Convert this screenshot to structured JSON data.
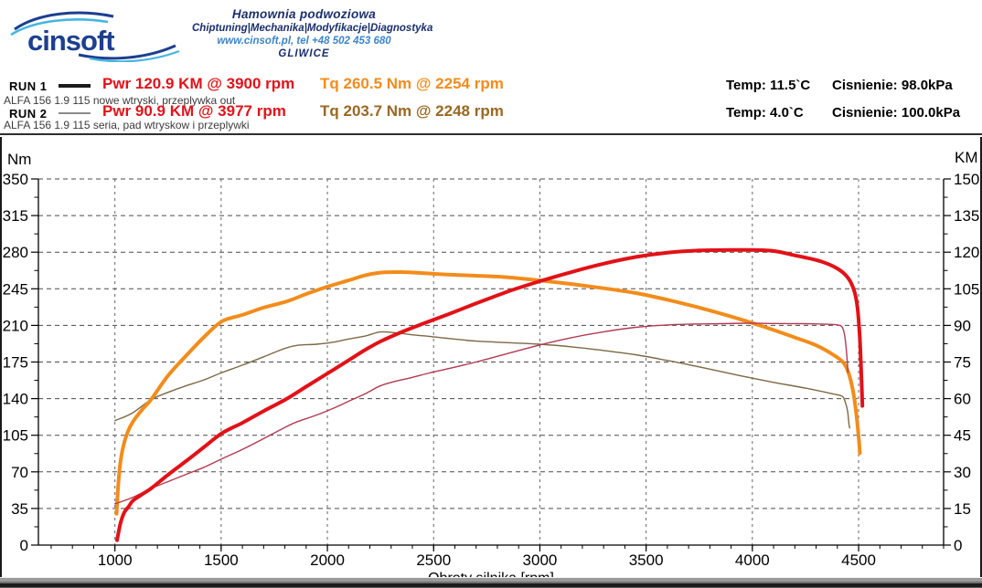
{
  "header": {
    "logo_text": "cinsoft",
    "line1": "Hamownia podwoziowa",
    "line2": "Chiptuning|Mechanika|Modyfikacje|Diagnostyka",
    "line3": "www.cinsoft.pl, tel +48 502 453 680",
    "line4": "GLIWICE"
  },
  "runs": [
    {
      "label": "RUN 1",
      "pwr": "Pwr 120.9 KM @ 3900 rpm",
      "tq": "Tq 260.5 Nm @ 2254 rpm",
      "temp": "Temp: 11.5`C",
      "pressure": "Cisnienie: 98.0kPa",
      "desc": "ALFA 156 1.9 115 nowe wtryski, przeplywka out"
    },
    {
      "label": "RUN 2",
      "pwr": "Pwr 90.9 KM @ 3977 rpm",
      "tq": "Tq 203.7 Nm @ 2248 rpm",
      "temp": "Temp: 4.0`C",
      "pressure": "Cisnienie: 100.0kPa",
      "desc": "ALFA 156 1.9 115 seria, pad wtryskow i przeplywki"
    }
  ],
  "colors": {
    "run1_power": "#e11218",
    "run1_torque": "#f28c1c",
    "run2_power": "#b23a50",
    "run2_torque": "#7d6845",
    "navy": "#1c3f8f",
    "light_blue": "#45b5e0"
  },
  "chart_data": {
    "type": "line",
    "x_axis": {
      "title": "Obroty silnika [rpm]",
      "min": 640,
      "max": 4900,
      "major_ticks": [
        1000,
        1500,
        2000,
        2500,
        3000,
        3500,
        4000,
        4500
      ],
      "minor_step": 100
    },
    "y_left": {
      "title": "Nm",
      "min": 0,
      "max": 350,
      "major_ticks": [
        0,
        35,
        70,
        105,
        140,
        175,
        210,
        245,
        280,
        315,
        350
      ],
      "minor_step": 17.5
    },
    "y_right": {
      "title": "KM",
      "min": 0,
      "max": 150,
      "major_ticks": [
        0,
        15,
        30,
        45,
        60,
        75,
        90,
        105,
        120,
        135,
        150
      ],
      "minor_step": 7.5
    },
    "series": [
      {
        "name": "RUN 2 torque",
        "axis": "left",
        "color": "#7d6845",
        "width": 1.4,
        "points": [
          [
            1000,
            119
          ],
          [
            1080,
            126
          ],
          [
            1170,
            139
          ],
          [
            1250,
            146
          ],
          [
            1330,
            152
          ],
          [
            1420,
            158
          ],
          [
            1505,
            165
          ],
          [
            1600,
            172
          ],
          [
            1700,
            180
          ],
          [
            1800,
            188
          ],
          [
            1860,
            191
          ],
          [
            1950,
            192
          ],
          [
            2030,
            194
          ],
          [
            2100,
            197
          ],
          [
            2180,
            200
          ],
          [
            2248,
            203.7
          ],
          [
            2320,
            203
          ],
          [
            2400,
            201
          ],
          [
            2480,
            199.5
          ],
          [
            2570,
            197.5
          ],
          [
            2700,
            195
          ],
          [
            2850,
            193.5
          ],
          [
            3000,
            192
          ],
          [
            3150,
            189.5
          ],
          [
            3300,
            186
          ],
          [
            3450,
            182
          ],
          [
            3600,
            176.5
          ],
          [
            3700,
            172.5
          ],
          [
            3850,
            166
          ],
          [
            3977,
            160.5
          ],
          [
            4100,
            155.5
          ],
          [
            4250,
            150
          ],
          [
            4370,
            145
          ],
          [
            4420,
            142.5
          ],
          [
            4435,
            138
          ],
          [
            4448,
            128
          ],
          [
            4455,
            115
          ],
          [
            4458,
            112
          ]
        ]
      },
      {
        "name": "RUN 1 torque",
        "axis": "left",
        "color": "#f28c1c",
        "width": 4,
        "points": [
          [
            1008,
            30
          ],
          [
            1015,
            55
          ],
          [
            1025,
            78
          ],
          [
            1040,
            95
          ],
          [
            1060,
            108
          ],
          [
            1085,
            118
          ],
          [
            1130,
            130
          ],
          [
            1170,
            139
          ],
          [
            1250,
            162
          ],
          [
            1335,
            181
          ],
          [
            1420,
            199
          ],
          [
            1505,
            214
          ],
          [
            1600,
            220
          ],
          [
            1700,
            227
          ],
          [
            1810,
            233
          ],
          [
            1900,
            240
          ],
          [
            2000,
            247
          ],
          [
            2100,
            253
          ],
          [
            2180,
            258
          ],
          [
            2254,
            260.5
          ],
          [
            2350,
            261
          ],
          [
            2450,
            260
          ],
          [
            2570,
            258.5
          ],
          [
            2700,
            257.5
          ],
          [
            2850,
            256
          ],
          [
            3000,
            253
          ],
          [
            3150,
            249.5
          ],
          [
            3300,
            245.5
          ],
          [
            3450,
            241
          ],
          [
            3600,
            234.5
          ],
          [
            3750,
            227
          ],
          [
            3900,
            218.5
          ],
          [
            4050,
            209
          ],
          [
            4200,
            198.5
          ],
          [
            4300,
            191
          ],
          [
            4380,
            182
          ],
          [
            4430,
            174
          ],
          [
            4455,
            163
          ],
          [
            4475,
            146
          ],
          [
            4490,
            124
          ],
          [
            4500,
            104
          ],
          [
            4506,
            88
          ]
        ]
      },
      {
        "name": "RUN 2 power",
        "axis": "right",
        "color": "#b23a50",
        "width": 1.4,
        "points": [
          [
            1000,
            16.9
          ],
          [
            1080,
            19.4
          ],
          [
            1170,
            23.2
          ],
          [
            1250,
            26
          ],
          [
            1330,
            28.8
          ],
          [
            1420,
            31.9
          ],
          [
            1505,
            35.4
          ],
          [
            1600,
            39.2
          ],
          [
            1700,
            43.6
          ],
          [
            1800,
            48.2
          ],
          [
            1860,
            50.6
          ],
          [
            1950,
            53.3
          ],
          [
            2030,
            56.1
          ],
          [
            2100,
            58.9
          ],
          [
            2180,
            62.1
          ],
          [
            2248,
            65.2
          ],
          [
            2320,
            67.1
          ],
          [
            2400,
            68.7
          ],
          [
            2480,
            70.5
          ],
          [
            2570,
            72.3
          ],
          [
            2700,
            75
          ],
          [
            2850,
            78.5
          ],
          [
            3000,
            82
          ],
          [
            3150,
            85
          ],
          [
            3300,
            87.4
          ],
          [
            3450,
            89.2
          ],
          [
            3600,
            90.2
          ],
          [
            3700,
            90.5
          ],
          [
            3850,
            90.7
          ],
          [
            3977,
            90.9
          ],
          [
            4100,
            90.8
          ],
          [
            4250,
            90.7
          ],
          [
            4370,
            90.4
          ],
          [
            4400,
            90.2
          ],
          [
            4420,
            89.6
          ],
          [
            4432,
            87
          ],
          [
            4440,
            82
          ],
          [
            4446,
            76
          ],
          [
            4450,
            70.8
          ]
        ]
      },
      {
        "name": "RUN 1 power",
        "axis": "right",
        "color": "#e11218",
        "width": 4,
        "points": [
          [
            1010,
            2
          ],
          [
            1018,
            5.5
          ],
          [
            1028,
            9.5
          ],
          [
            1045,
            13.5
          ],
          [
            1065,
            15.8
          ],
          [
            1085,
            18.2
          ],
          [
            1130,
            20.9
          ],
          [
            1170,
            23.2
          ],
          [
            1250,
            28.8
          ],
          [
            1335,
            34.4
          ],
          [
            1420,
            40.2
          ],
          [
            1505,
            45.9
          ],
          [
            1600,
            50.1
          ],
          [
            1700,
            54.9
          ],
          [
            1810,
            60
          ],
          [
            1900,
            64.9
          ],
          [
            2000,
            70.3
          ],
          [
            2100,
            75.7
          ],
          [
            2180,
            80.1
          ],
          [
            2254,
            83.6
          ],
          [
            2350,
            87.3
          ],
          [
            2450,
            90.7
          ],
          [
            2570,
            94.6
          ],
          [
            2700,
            99
          ],
          [
            2850,
            103.9
          ],
          [
            3000,
            108.1
          ],
          [
            3150,
            111.9
          ],
          [
            3300,
            115.3
          ],
          [
            3450,
            118
          ],
          [
            3600,
            119.8
          ],
          [
            3750,
            120.7
          ],
          [
            3900,
            120.9
          ],
          [
            4000,
            120.9
          ],
          [
            4100,
            120.5
          ],
          [
            4200,
            118.7
          ],
          [
            4320,
            116.3
          ],
          [
            4400,
            113.3
          ],
          [
            4450,
            109.5
          ],
          [
            4480,
            104
          ],
          [
            4495,
            97
          ],
          [
            4505,
            86
          ],
          [
            4512,
            72
          ],
          [
            4518,
            57
          ]
        ]
      }
    ]
  }
}
